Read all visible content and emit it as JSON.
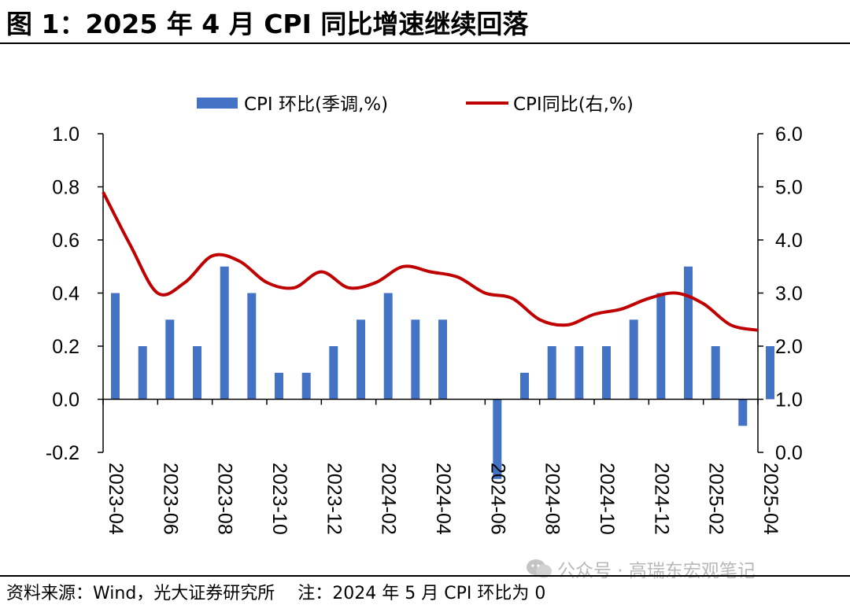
{
  "title": "图 1：2025 年 4 月 CPI 同比增速继续回落",
  "source_note": "资料来源：Wind，光大证券研究所　 注：2024 年 5 月 CPI 环比为 0",
  "watermark": "公众号 · 高瑞东宏观笔记",
  "chart_data": {
    "type": "bar+line",
    "title": "",
    "categories": [
      "2023-04",
      "2023-05",
      "2023-06",
      "2023-07",
      "2023-08",
      "2023-09",
      "2023-10",
      "2023-11",
      "2023-12",
      "2024-01",
      "2024-02",
      "2024-03",
      "2024-04",
      "2024-05",
      "2024-06",
      "2024-07",
      "2024-08",
      "2024-09",
      "2024-10",
      "2024-11",
      "2024-12",
      "2025-01",
      "2025-02",
      "2025-03",
      "2025-04"
    ],
    "x_tick_labels": [
      "2023-04",
      "2023-06",
      "2023-08",
      "2023-10",
      "2023-12",
      "2024-02",
      "2024-04",
      "2024-06",
      "2024-08",
      "2024-10",
      "2024-12",
      "2025-02",
      "2025-04"
    ],
    "series": [
      {
        "name": "CPI 环比(季调,%)",
        "type": "bar",
        "axis": "left",
        "color": "#4472C4",
        "values": [
          0.4,
          0.2,
          0.3,
          0.2,
          0.5,
          0.4,
          0.1,
          0.1,
          0.2,
          0.3,
          0.4,
          0.3,
          0.3,
          0,
          -0.3,
          0.1,
          0.2,
          0.2,
          0.2,
          0.3,
          0.4,
          0.5,
          0.2,
          -0.1,
          0.2
        ]
      },
      {
        "name": "CPI同比(右,%)",
        "type": "line",
        "axis": "right",
        "color": "#C00000",
        "values": [
          4.9,
          3.9,
          3.0,
          3.2,
          3.7,
          3.6,
          3.2,
          3.1,
          3.4,
          3.1,
          3.2,
          3.5,
          3.4,
          3.3,
          3.0,
          2.9,
          2.5,
          2.4,
          2.6,
          2.7,
          2.9,
          3.0,
          2.8,
          2.4,
          2.3
        ]
      }
    ],
    "y_left": {
      "min": -0.2,
      "max": 1.0,
      "ticks": [
        "-0.2",
        "0.0",
        "0.2",
        "0.4",
        "0.6",
        "0.8",
        "1.0"
      ]
    },
    "y_right": {
      "min": 0.0,
      "max": 6.0,
      "ticks": [
        "0.0",
        "1.0",
        "2.0",
        "3.0",
        "4.0",
        "5.0",
        "6.0"
      ]
    },
    "legend_position": "top",
    "grid": false
  }
}
